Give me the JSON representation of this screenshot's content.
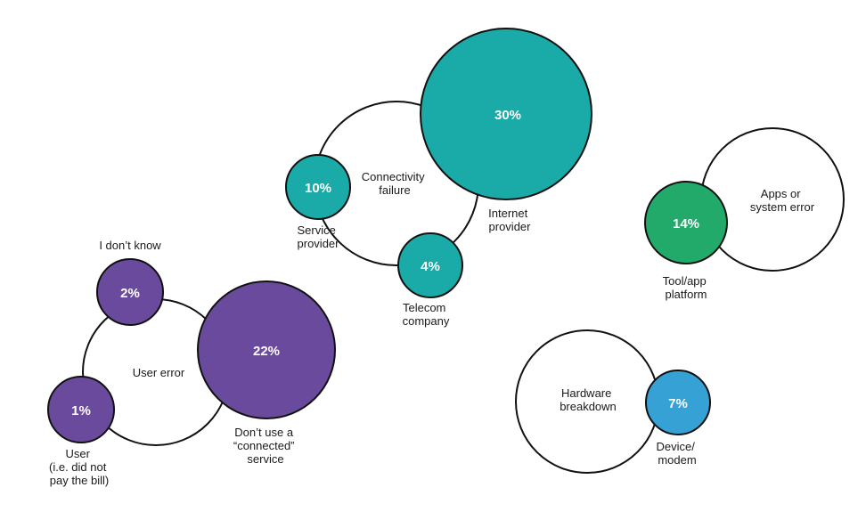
{
  "colors": {
    "purple": "#6a4a9c",
    "teal": "#1aaba9",
    "green": "#22aa6a",
    "blue": "#35a1d4",
    "outline": "#111111"
  },
  "groups": [
    {
      "label": [
        "User error"
      ],
      "bubbles": [
        {
          "pct": "2%",
          "label": [
            "I don’t know"
          ],
          "color": "purple"
        },
        {
          "pct": "22%",
          "label": [
            "Don’t use a",
            "“connected”",
            "service"
          ],
          "color": "purple"
        },
        {
          "pct": "1%",
          "label": [
            "User",
            "(i.e. did not",
            "pay the bill)"
          ],
          "color": "purple"
        }
      ]
    },
    {
      "label": [
        "Connectivity",
        "failure"
      ],
      "bubbles": [
        {
          "pct": "30%",
          "label": [
            "Internet",
            "provider"
          ],
          "color": "teal"
        },
        {
          "pct": "10%",
          "label": [
            "Service",
            "provider"
          ],
          "color": "teal"
        },
        {
          "pct": "4%",
          "label": [
            "Telecom",
            "company"
          ],
          "color": "teal"
        }
      ]
    },
    {
      "label": [
        "Apps or",
        "system error"
      ],
      "bubbles": [
        {
          "pct": "14%",
          "label": [
            "Tool/app",
            "platform"
          ],
          "color": "green"
        }
      ]
    },
    {
      "label": [
        "Hardware",
        "breakdown"
      ],
      "bubbles": [
        {
          "pct": "7%",
          "label": [
            "Device/",
            "modem"
          ],
          "color": "blue"
        }
      ]
    }
  ]
}
